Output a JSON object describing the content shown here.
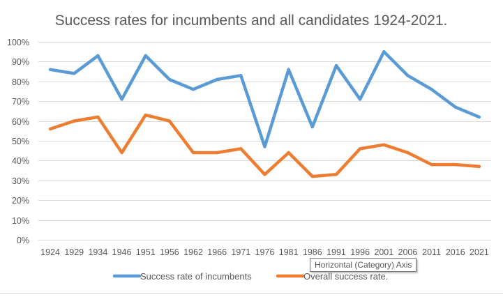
{
  "chart_data": {
    "type": "line",
    "title": "Success rates for incumbents and all candidates 1924-2021.",
    "xlabel": "",
    "ylabel": "",
    "ylim": [
      0,
      1
    ],
    "y_ticks": [
      "0%",
      "10%",
      "20%",
      "30%",
      "40%",
      "50%",
      "60%",
      "70%",
      "80%",
      "90%",
      "100%"
    ],
    "y_tick_values": [
      0,
      0.1,
      0.2,
      0.3,
      0.4,
      0.5,
      0.6,
      0.7,
      0.8,
      0.9,
      1.0
    ],
    "grid": true,
    "legend_position": "bottom",
    "categories": [
      "1924",
      "1929",
      "1934",
      "1946",
      "1951",
      "1956",
      "1962",
      "1966",
      "1971",
      "1976",
      "1981",
      "1986",
      "1991",
      "1996",
      "2001",
      "2006",
      "2011",
      "2016",
      "2021"
    ],
    "series": [
      {
        "name": "Success rate of incumbents",
        "color": "#5B9BD5",
        "values": [
          0.86,
          0.84,
          0.93,
          0.71,
          0.93,
          0.81,
          0.76,
          0.81,
          0.83,
          0.47,
          0.86,
          0.57,
          0.88,
          0.71,
          0.95,
          0.83,
          0.76,
          0.67,
          0.62
        ]
      },
      {
        "name": "Overall success rate.",
        "color": "#ED7D31",
        "values": [
          0.56,
          0.6,
          0.62,
          0.44,
          0.63,
          0.6,
          0.44,
          0.44,
          0.46,
          0.33,
          0.44,
          0.32,
          0.33,
          0.46,
          0.48,
          0.44,
          0.38,
          0.38,
          0.37
        ]
      }
    ]
  },
  "tooltip": {
    "text": "Horizontal (Category) Axis"
  }
}
